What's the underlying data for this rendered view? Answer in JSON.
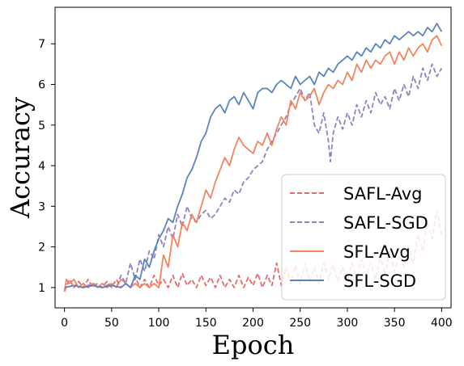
{
  "chart_data": {
    "type": "line",
    "title": "",
    "xlabel": "Epoch",
    "ylabel": "Accuracy",
    "xlim": [
      -10,
      410
    ],
    "ylim": [
      0.5,
      7.9
    ],
    "xticks": [
      "0",
      "50",
      "100",
      "150",
      "200",
      "250",
      "300",
      "350",
      "400"
    ],
    "yticks": [
      "1",
      "2",
      "3",
      "4",
      "5",
      "6",
      "7"
    ],
    "grid": false,
    "legend_position": "lower-right",
    "series": [
      {
        "name": "SAFL-Avg",
        "color": "#e8696b",
        "style": "dashed",
        "points": [
          [
            0,
            0.9
          ],
          [
            5,
            1.2
          ],
          [
            10,
            1.0
          ],
          [
            15,
            1.15
          ],
          [
            20,
            1.0
          ],
          [
            25,
            1.2
          ],
          [
            30,
            1.0
          ],
          [
            35,
            1.1
          ],
          [
            40,
            1.0
          ],
          [
            45,
            1.15
          ],
          [
            50,
            1.0
          ],
          [
            55,
            1.2
          ],
          [
            60,
            1.0
          ],
          [
            65,
            1.1
          ],
          [
            70,
            1.0
          ],
          [
            75,
            1.25
          ],
          [
            80,
            1.0
          ],
          [
            85,
            1.2
          ],
          [
            90,
            1.0
          ],
          [
            95,
            1.3
          ],
          [
            100,
            1.05
          ],
          [
            105,
            1.2
          ],
          [
            110,
            1.0
          ],
          [
            115,
            1.3
          ],
          [
            120,
            1.0
          ],
          [
            125,
            1.35
          ],
          [
            130,
            1.05
          ],
          [
            135,
            1.2
          ],
          [
            140,
            1.0
          ],
          [
            145,
            1.3
          ],
          [
            150,
            1.05
          ],
          [
            155,
            1.25
          ],
          [
            160,
            1.0
          ],
          [
            165,
            1.3
          ],
          [
            170,
            1.0
          ],
          [
            175,
            1.2
          ],
          [
            180,
            1.0
          ],
          [
            185,
            1.3
          ],
          [
            190,
            1.0
          ],
          [
            195,
            1.25
          ],
          [
            200,
            1.05
          ],
          [
            205,
            1.35
          ],
          [
            210,
            1.0
          ],
          [
            215,
            1.3
          ],
          [
            220,
            1.05
          ],
          [
            225,
            1.6
          ],
          [
            230,
            1.05
          ],
          [
            235,
            1.5
          ],
          [
            240,
            1.1
          ],
          [
            245,
            1.55
          ],
          [
            250,
            1.1
          ],
          [
            255,
            1.6
          ],
          [
            260,
            1.15
          ],
          [
            265,
            1.5
          ],
          [
            270,
            1.1
          ],
          [
            275,
            1.6
          ],
          [
            280,
            1.2
          ],
          [
            285,
            1.55
          ],
          [
            290,
            1.15
          ],
          [
            295,
            1.5
          ],
          [
            300,
            1.2
          ],
          [
            305,
            1.6
          ],
          [
            310,
            1.2
          ],
          [
            315,
            1.7
          ],
          [
            320,
            1.3
          ],
          [
            325,
            1.6
          ],
          [
            330,
            1.2
          ],
          [
            335,
            1.8
          ],
          [
            340,
            1.3
          ],
          [
            345,
            1.9
          ],
          [
            350,
            1.4
          ],
          [
            355,
            1.8
          ],
          [
            360,
            1.5
          ],
          [
            365,
            2.0
          ],
          [
            370,
            1.6
          ],
          [
            375,
            2.3
          ],
          [
            380,
            1.9
          ],
          [
            385,
            2.6
          ],
          [
            390,
            2.2
          ],
          [
            395,
            2.9
          ],
          [
            400,
            2.3
          ]
        ]
      },
      {
        "name": "SAFL-SGD",
        "color": "#8e82c0",
        "style": "dashed",
        "points": [
          [
            0,
            1.0
          ],
          [
            10,
            1.05
          ],
          [
            20,
            1.0
          ],
          [
            30,
            1.1
          ],
          [
            40,
            1.0
          ],
          [
            50,
            1.1
          ],
          [
            55,
            1.0
          ],
          [
            60,
            1.3
          ],
          [
            65,
            1.1
          ],
          [
            70,
            1.6
          ],
          [
            75,
            1.2
          ],
          [
            80,
            1.7
          ],
          [
            85,
            1.4
          ],
          [
            90,
            1.9
          ],
          [
            95,
            1.7
          ],
          [
            100,
            2.3
          ],
          [
            105,
            2.0
          ],
          [
            110,
            2.5
          ],
          [
            115,
            2.2
          ],
          [
            120,
            2.8
          ],
          [
            125,
            2.5
          ],
          [
            130,
            3.0
          ],
          [
            135,
            2.7
          ],
          [
            140,
            2.6
          ],
          [
            145,
            2.8
          ],
          [
            150,
            2.9
          ],
          [
            155,
            2.7
          ],
          [
            160,
            2.8
          ],
          [
            165,
            3.0
          ],
          [
            170,
            3.2
          ],
          [
            175,
            3.1
          ],
          [
            180,
            3.4
          ],
          [
            185,
            3.3
          ],
          [
            190,
            3.6
          ],
          [
            195,
            3.7
          ],
          [
            200,
            3.9
          ],
          [
            205,
            4.0
          ],
          [
            210,
            4.1
          ],
          [
            215,
            4.4
          ],
          [
            220,
            4.6
          ],
          [
            225,
            4.8
          ],
          [
            230,
            5.0
          ],
          [
            235,
            5.2
          ],
          [
            240,
            5.5
          ],
          [
            245,
            5.7
          ],
          [
            250,
            5.9
          ],
          [
            255,
            5.6
          ],
          [
            260,
            5.8
          ],
          [
            265,
            5.0
          ],
          [
            270,
            4.8
          ],
          [
            275,
            5.3
          ],
          [
            280,
            4.6
          ],
          [
            282,
            4.1
          ],
          [
            285,
            4.8
          ],
          [
            290,
            5.2
          ],
          [
            295,
            4.9
          ],
          [
            300,
            5.3
          ],
          [
            305,
            5.0
          ],
          [
            310,
            5.5
          ],
          [
            315,
            5.2
          ],
          [
            320,
            5.6
          ],
          [
            325,
            5.3
          ],
          [
            330,
            5.8
          ],
          [
            335,
            5.5
          ],
          [
            340,
            5.7
          ],
          [
            345,
            5.4
          ],
          [
            350,
            5.9
          ],
          [
            355,
            5.6
          ],
          [
            360,
            6.0
          ],
          [
            365,
            5.7
          ],
          [
            370,
            6.2
          ],
          [
            375,
            5.9
          ],
          [
            380,
            6.4
          ],
          [
            385,
            6.1
          ],
          [
            390,
            6.5
          ],
          [
            395,
            6.2
          ],
          [
            400,
            6.4
          ]
        ]
      },
      {
        "name": "SFL-Avg",
        "color": "#f4845f",
        "style": "solid",
        "points": [
          [
            0,
            0.9
          ],
          [
            2,
            1.2
          ],
          [
            5,
            1.1
          ],
          [
            10,
            1.2
          ],
          [
            15,
            1.0
          ],
          [
            20,
            1.1
          ],
          [
            25,
            1.0
          ],
          [
            30,
            1.1
          ],
          [
            35,
            1.0
          ],
          [
            40,
            1.1
          ],
          [
            45,
            1.0
          ],
          [
            50,
            1.1
          ],
          [
            55,
            1.0
          ],
          [
            60,
            1.2
          ],
          [
            65,
            1.1
          ],
          [
            70,
            1.0
          ],
          [
            75,
            1.1
          ],
          [
            80,
            1.0
          ],
          [
            85,
            1.1
          ],
          [
            90,
            1.0
          ],
          [
            95,
            1.1
          ],
          [
            100,
            1.0
          ],
          [
            105,
            1.8
          ],
          [
            110,
            1.5
          ],
          [
            115,
            2.3
          ],
          [
            120,
            2.0
          ],
          [
            125,
            2.6
          ],
          [
            130,
            2.4
          ],
          [
            135,
            2.8
          ],
          [
            140,
            2.6
          ],
          [
            145,
            3.0
          ],
          [
            150,
            3.4
          ],
          [
            155,
            3.2
          ],
          [
            160,
            3.6
          ],
          [
            165,
            3.9
          ],
          [
            170,
            4.2
          ],
          [
            175,
            4.0
          ],
          [
            180,
            4.4
          ],
          [
            185,
            4.7
          ],
          [
            190,
            4.5
          ],
          [
            195,
            4.4
          ],
          [
            200,
            4.3
          ],
          [
            205,
            4.6
          ],
          [
            210,
            4.5
          ],
          [
            215,
            4.8
          ],
          [
            220,
            4.5
          ],
          [
            225,
            4.9
          ],
          [
            230,
            5.2
          ],
          [
            235,
            5.0
          ],
          [
            240,
            5.6
          ],
          [
            245,
            5.4
          ],
          [
            250,
            5.8
          ],
          [
            255,
            5.6
          ],
          [
            260,
            5.7
          ],
          [
            265,
            5.9
          ],
          [
            270,
            5.5
          ],
          [
            275,
            5.8
          ],
          [
            280,
            6.0
          ],
          [
            285,
            5.9
          ],
          [
            290,
            6.1
          ],
          [
            295,
            6.0
          ],
          [
            300,
            6.3
          ],
          [
            305,
            6.1
          ],
          [
            310,
            6.5
          ],
          [
            315,
            6.3
          ],
          [
            320,
            6.6
          ],
          [
            325,
            6.4
          ],
          [
            330,
            6.6
          ],
          [
            335,
            6.5
          ],
          [
            340,
            6.7
          ],
          [
            345,
            6.8
          ],
          [
            350,
            6.5
          ],
          [
            355,
            6.8
          ],
          [
            360,
            6.6
          ],
          [
            365,
            6.9
          ],
          [
            370,
            6.7
          ],
          [
            375,
            6.9
          ],
          [
            380,
            7.0
          ],
          [
            385,
            6.8
          ],
          [
            390,
            7.1
          ],
          [
            395,
            7.2
          ],
          [
            400,
            6.95
          ]
        ]
      },
      {
        "name": "SFL-SGD",
        "color": "#5b84be",
        "style": "solid",
        "points": [
          [
            0,
            1.0
          ],
          [
            10,
            1.05
          ],
          [
            20,
            1.0
          ],
          [
            30,
            1.05
          ],
          [
            40,
            1.0
          ],
          [
            50,
            1.05
          ],
          [
            60,
            1.0
          ],
          [
            65,
            1.1
          ],
          [
            70,
            1.0
          ],
          [
            75,
            1.3
          ],
          [
            80,
            1.2
          ],
          [
            85,
            1.7
          ],
          [
            90,
            1.5
          ],
          [
            95,
            1.9
          ],
          [
            100,
            2.2
          ],
          [
            105,
            2.4
          ],
          [
            110,
            2.7
          ],
          [
            115,
            2.6
          ],
          [
            120,
            3.0
          ],
          [
            125,
            3.3
          ],
          [
            130,
            3.7
          ],
          [
            135,
            3.9
          ],
          [
            140,
            4.2
          ],
          [
            145,
            4.6
          ],
          [
            150,
            4.8
          ],
          [
            155,
            5.2
          ],
          [
            160,
            5.4
          ],
          [
            165,
            5.5
          ],
          [
            170,
            5.3
          ],
          [
            175,
            5.6
          ],
          [
            180,
            5.7
          ],
          [
            185,
            5.5
          ],
          [
            190,
            5.8
          ],
          [
            195,
            5.6
          ],
          [
            200,
            5.4
          ],
          [
            205,
            5.8
          ],
          [
            210,
            5.9
          ],
          [
            215,
            5.9
          ],
          [
            220,
            5.8
          ],
          [
            225,
            6.0
          ],
          [
            230,
            6.1
          ],
          [
            235,
            6.0
          ],
          [
            240,
            5.9
          ],
          [
            245,
            6.2
          ],
          [
            250,
            6.0
          ],
          [
            255,
            6.1
          ],
          [
            260,
            6.2
          ],
          [
            265,
            6.0
          ],
          [
            270,
            6.3
          ],
          [
            275,
            6.2
          ],
          [
            280,
            6.4
          ],
          [
            285,
            6.3
          ],
          [
            290,
            6.5
          ],
          [
            295,
            6.6
          ],
          [
            300,
            6.7
          ],
          [
            305,
            6.6
          ],
          [
            310,
            6.8
          ],
          [
            315,
            6.7
          ],
          [
            320,
            6.9
          ],
          [
            325,
            6.8
          ],
          [
            330,
            7.0
          ],
          [
            335,
            6.9
          ],
          [
            340,
            7.1
          ],
          [
            345,
            7.0
          ],
          [
            350,
            7.2
          ],
          [
            355,
            7.1
          ],
          [
            360,
            7.2
          ],
          [
            365,
            7.3
          ],
          [
            370,
            7.2
          ],
          [
            375,
            7.3
          ],
          [
            380,
            7.2
          ],
          [
            385,
            7.4
          ],
          [
            390,
            7.3
          ],
          [
            395,
            7.5
          ],
          [
            400,
            7.3
          ]
        ]
      }
    ]
  }
}
